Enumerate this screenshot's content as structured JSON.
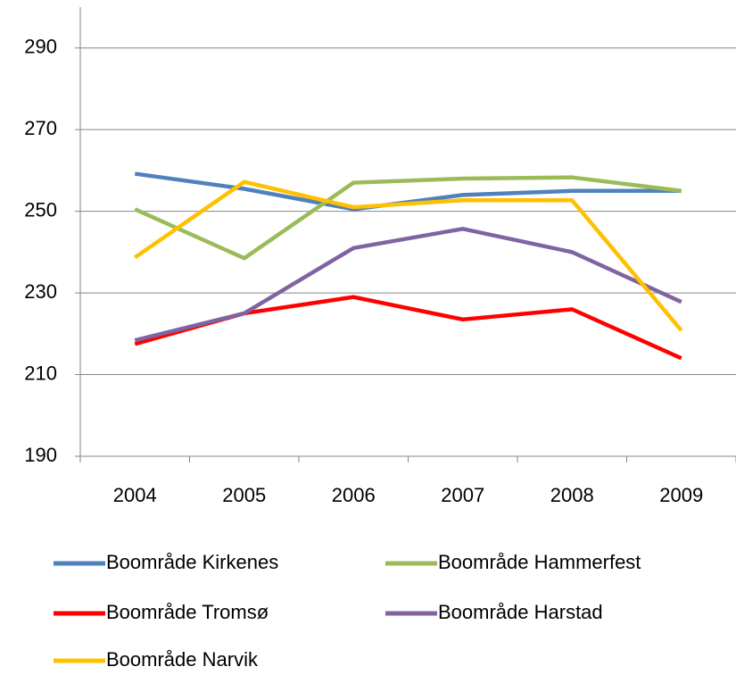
{
  "chart_data": {
    "type": "line",
    "categories": [
      "2004",
      "2005",
      "2006",
      "2007",
      "2008",
      "2009"
    ],
    "series": [
      {
        "name": "Boområde Kirkenes",
        "color": "#4f81bd",
        "values": [
          259.2,
          255.5,
          250.5,
          254,
          255,
          255
        ]
      },
      {
        "name": "Boområde Hammerfest",
        "color": "#9bbb59",
        "values": [
          250.5,
          238.5,
          257,
          258,
          258.3,
          255
        ]
      },
      {
        "name": "Boområde Tromsø",
        "color": "#ff0000",
        "values": [
          217.5,
          225,
          229,
          223.5,
          226,
          214
        ]
      },
      {
        "name": "Boområde Harstad",
        "color": "#8064a2",
        "values": [
          218.4,
          225,
          241,
          245.7,
          240,
          227.8
        ]
      },
      {
        "name": "Boområde Narvik",
        "color": "#ffc000",
        "values": [
          238.7,
          257.2,
          251,
          252.7,
          252.7,
          220.8
        ]
      }
    ],
    "ylim": [
      190,
      300
    ],
    "yticks": [
      190,
      210,
      230,
      250,
      270,
      290
    ],
    "grid": true
  }
}
